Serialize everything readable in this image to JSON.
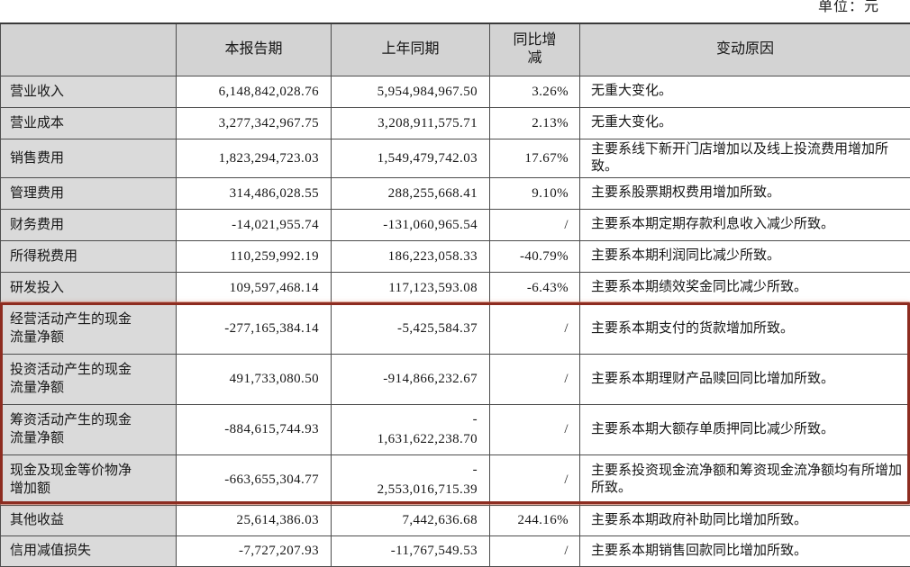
{
  "unit_label": "单位：元",
  "table": {
    "headers": [
      "",
      "本报告期",
      "上年同期",
      "同比增\n减",
      "变动原因"
    ],
    "rows": [
      {
        "label": "营业收入",
        "current": "6,148,842,028.76",
        "prior": "5,954,984,967.50",
        "yoy": "3.26%",
        "reason": "无重大变化。",
        "highlighted": false
      },
      {
        "label": "营业成本",
        "current": "3,277,342,967.75",
        "prior": "3,208,911,575.71",
        "yoy": "2.13%",
        "reason": "无重大变化。",
        "highlighted": false
      },
      {
        "label": "销售费用",
        "current": "1,823,294,723.03",
        "prior": "1,549,479,742.03",
        "yoy": "17.67%",
        "reason": "主要系线下新开门店增加以及线上投流费用增加所致。",
        "highlighted": false
      },
      {
        "label": "管理费用",
        "current": "314,486,028.55",
        "prior": "288,255,668.41",
        "yoy": "9.10%",
        "reason": "主要系股票期权费用增加所致。",
        "highlighted": false
      },
      {
        "label": "财务费用",
        "current": "-14,021,955.74",
        "prior": "-131,060,965.54",
        "yoy": "/",
        "reason": "主要系本期定期存款利息收入减少所致。",
        "highlighted": false
      },
      {
        "label": "所得税费用",
        "current": "110,259,992.19",
        "prior": "186,223,058.33",
        "yoy": "-40.79%",
        "reason": "主要系本期利润同比减少所致。",
        "highlighted": false
      },
      {
        "label": "研发投入",
        "current": "109,597,468.14",
        "prior": "117,123,593.08",
        "yoy": "-6.43%",
        "reason": "主要系本期绩效奖金同比减少所致。",
        "highlighted": false
      },
      {
        "label": "经营活动产生的现金流量净额",
        "current": "-277,165,384.14",
        "prior": "-5,425,584.37",
        "yoy": "/",
        "reason": "主要系本期支付的货款增加所致。",
        "highlighted": true
      },
      {
        "label": "投资活动产生的现金流量净额",
        "current": "491,733,080.50",
        "prior": "-914,866,232.67",
        "yoy": "/",
        "reason": "主要系本期理财产品赎回同比增加所致。",
        "highlighted": true
      },
      {
        "label": "筹资活动产生的现金流量净额",
        "current": "-884,615,744.93",
        "prior": "-\n1,631,622,238.70",
        "yoy": "/",
        "reason": "主要系本期大额存单质押同比减少所致。",
        "highlighted": true
      },
      {
        "label": "现金及现金等价物净增加额",
        "current": "-663,655,304.77",
        "prior": "-\n2,553,016,715.39",
        "yoy": "/",
        "reason": "主要系投资现金流净额和筹资现金流净额均有所增加所致。",
        "highlighted": true
      },
      {
        "label": "其他收益",
        "current": "25,614,386.03",
        "prior": "7,442,636.68",
        "yoy": "244.16%",
        "reason": "主要系本期政府补助同比增加所致。",
        "highlighted": false
      },
      {
        "label": "信用减值损失",
        "current": "-7,727,207.93",
        "prior": "-11,767,549.53",
        "yoy": "/",
        "reason": "主要系本期销售回款同比增加所致。",
        "highlighted": false
      }
    ]
  },
  "highlight": {
    "color": "#8d2c20",
    "rows_covered": "经营活动产生的现金流量净额 — 现金及现金等价物净增加额"
  }
}
